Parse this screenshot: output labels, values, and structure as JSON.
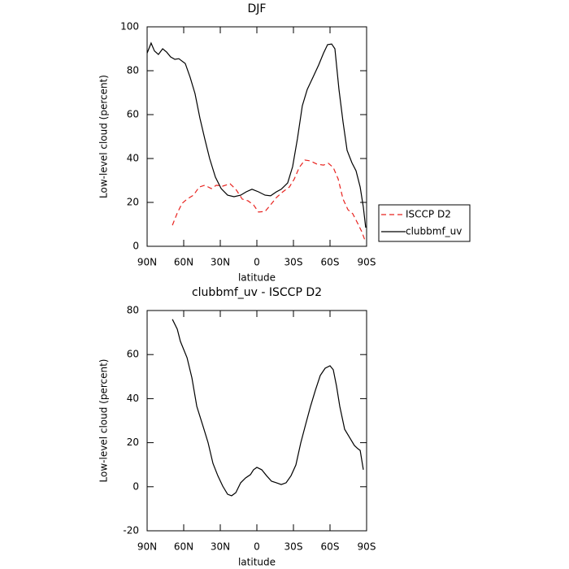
{
  "chart_data": [
    {
      "type": "line",
      "title": "DJF",
      "xlabel": "latitude",
      "ylabel": "Low-level cloud (percent)",
      "xlim": [
        90,
        -90
      ],
      "xticks": [
        {
          "value": 90,
          "label": "90N"
        },
        {
          "value": 60,
          "label": "60N"
        },
        {
          "value": 30,
          "label": "30N"
        },
        0,
        {
          "value": -30,
          "label": "30S"
        },
        {
          "value": -60,
          "label": "60S"
        },
        {
          "value": -90,
          "label": "90S"
        }
      ],
      "ylim": [
        0,
        100
      ],
      "yticks": [
        0,
        20,
        40,
        60,
        80,
        100
      ],
      "legend": "outside right",
      "series": [
        {
          "name": "ISCCP D2",
          "color": "#e8231f",
          "dash": true,
          "x": [
            69.3,
            65.3,
            61.3,
            57.3,
            52,
            47.3,
            42.7,
            37.3,
            33.3,
            28,
            22,
            17.3,
            12,
            7.3,
            2.7,
            -1.3,
            -6.7,
            -11.3,
            -16,
            -21.3,
            -26.7,
            -30.7,
            -34.7,
            -39.3,
            -44,
            -49.3,
            -54.7,
            -58.7,
            -62.7,
            -66.7,
            -70.7,
            -74.7,
            -78.7,
            -82.7,
            -86,
            -88.7
          ],
          "values": [
            9.6,
            15.2,
            19.6,
            21.5,
            23.3,
            27,
            27.8,
            26.3,
            27.8,
            27.4,
            28.5,
            26,
            21.5,
            20.7,
            18.9,
            15.6,
            15.9,
            18.9,
            22.2,
            24.8,
            27,
            30.7,
            35.9,
            39.3,
            38.9,
            37.4,
            37,
            37.8,
            35.9,
            30.7,
            21.5,
            16.7,
            14.8,
            10.4,
            6.7,
            2.6
          ]
        },
        {
          "name": "clubbmf_uv",
          "color": "#000000",
          "dash": false,
          "x": [
            90,
            86.7,
            84,
            80.7,
            77.3,
            74,
            70.7,
            67.3,
            64,
            58.7,
            54.7,
            50.7,
            46.7,
            42.7,
            38.7,
            34,
            29.3,
            24,
            18.7,
            13.3,
            8.7,
            4,
            -1.3,
            -6.7,
            -11.3,
            -16,
            -20,
            -25.3,
            -29.3,
            -33.3,
            -37.3,
            -41.3,
            -46,
            -50.7,
            -54.7,
            -58,
            -61.3,
            -64,
            -67.3,
            -70.7,
            -74,
            -78,
            -81.3,
            -84.7,
            -87.3,
            -89.3
          ],
          "values": [
            88,
            92.6,
            89,
            87.4,
            90,
            88.5,
            86.3,
            85.2,
            85.5,
            83.3,
            77,
            69.6,
            58.5,
            49,
            40,
            31.5,
            26.3,
            23.3,
            22.6,
            23.3,
            24.8,
            26,
            24.8,
            23.3,
            23,
            24.8,
            26,
            28.9,
            36.3,
            49,
            64,
            71.5,
            77,
            82.6,
            88,
            91.9,
            92.2,
            90,
            71.5,
            56.7,
            43.7,
            38,
            34.4,
            27,
            17.8,
            8.5
          ]
        }
      ]
    },
    {
      "type": "line",
      "title": "clubbmf_uv - ISCCP D2",
      "xlabel": "latitude",
      "ylabel": "Low-level cloud (percent)",
      "xlim": [
        90,
        -90
      ],
      "xticks": [
        {
          "value": 90,
          "label": "90N"
        },
        {
          "value": 60,
          "label": "60N"
        },
        {
          "value": 30,
          "label": "30N"
        },
        0,
        {
          "value": -30,
          "label": "30S"
        },
        {
          "value": -60,
          "label": "60S"
        },
        {
          "value": -90,
          "label": "90S"
        }
      ],
      "ylim": [
        -20,
        80
      ],
      "yticks": [
        -20,
        0,
        20,
        40,
        60,
        80
      ],
      "series": [
        {
          "color": "#000000",
          "dash": false,
          "x": [
            69.3,
            65.3,
            62.7,
            57.3,
            53.3,
            49.3,
            44,
            40,
            36,
            32,
            28,
            24,
            20.7,
            17.3,
            13.3,
            9.3,
            5.3,
            2.7,
            0,
            -4,
            -8,
            -12,
            -16,
            -20,
            -24,
            -28,
            -32,
            -36,
            -40,
            -44,
            -48,
            -52,
            -56,
            -60,
            -62.7,
            -65.3,
            -68,
            -72,
            -76,
            -80,
            -82.7,
            -84.7,
            -87.3
          ],
          "values": [
            76,
            71.5,
            66,
            58.6,
            49.4,
            36.5,
            27.2,
            20,
            10.6,
            5,
            0.3,
            -3.4,
            -4.1,
            -2.7,
            1.8,
            4,
            5.5,
            7.7,
            8.8,
            7.7,
            5,
            2.5,
            1.8,
            1,
            1.8,
            5,
            9.9,
            19.9,
            28.3,
            36.5,
            43.8,
            50.5,
            53.8,
            54.9,
            53.1,
            45.7,
            36.5,
            26.1,
            22.4,
            18.7,
            17.3,
            16.5,
            7.7
          ]
        }
      ]
    }
  ]
}
